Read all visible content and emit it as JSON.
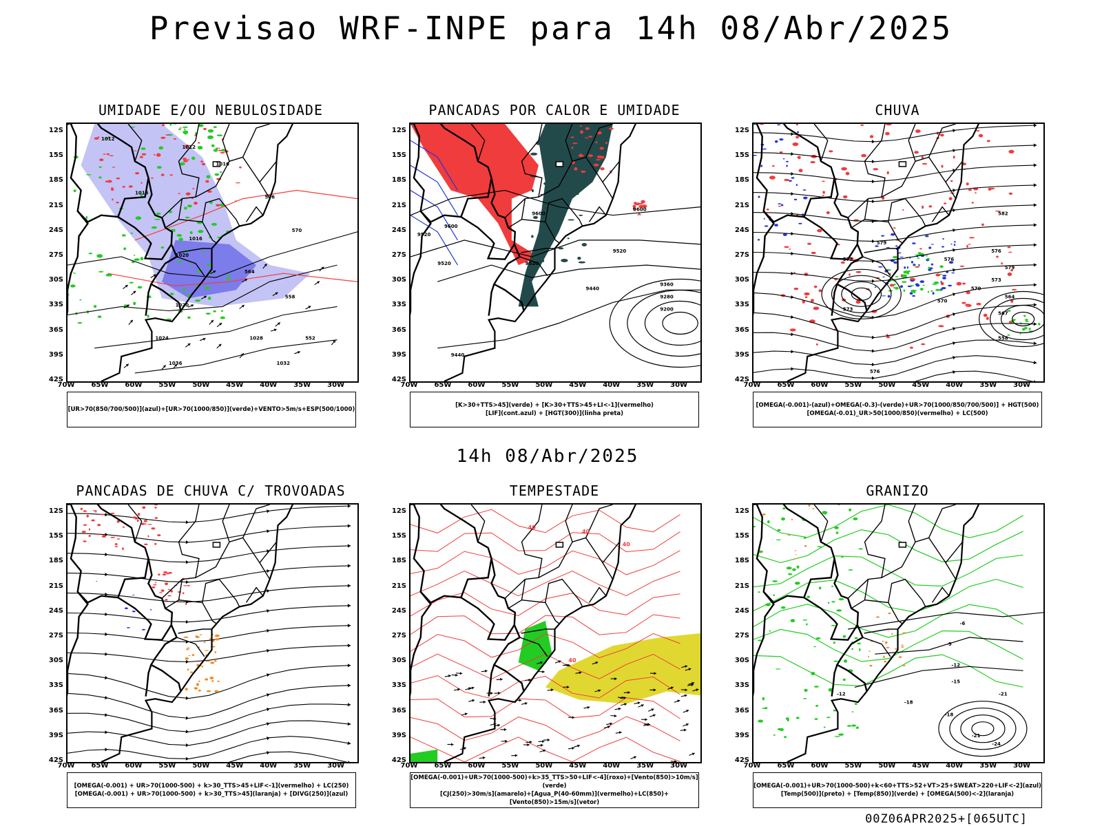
{
  "title": "Previsao WRF-INPE  para 14h 08/Abr/2025",
  "middle_label": "14h 08/Abr/2025",
  "footer": "00Z06APR2025+[065UTC]",
  "colors": {
    "red": "#f03c3c",
    "green": "#22cc22",
    "blue": "#2233dd",
    "lavender": "#b4b4f2",
    "darkteal": "#234a4a",
    "yellow": "#e0d830",
    "orange": "#f08c28"
  },
  "chart_data": [
    {
      "type": "map",
      "panel": "UMIDADE E/OU NEBULOSIDADE",
      "title": "UMIDADE E/OU NEBULOSIDADE",
      "legend_lines": [
        "[UR>70(850/700/500)](azul)+[UR>70(1000/850)](verde)+VENTO>5m/s+ESP(500/1000)"
      ],
      "lat_ticks": [
        "12S",
        "15S",
        "18S",
        "21S",
        "24S",
        "27S",
        "30S",
        "33S",
        "36S",
        "39S",
        "42S"
      ],
      "lon_ticks": [
        "70W",
        "65W",
        "60W",
        "55W",
        "50W",
        "45W",
        "40W",
        "35W",
        "30W"
      ],
      "contour_labels": [
        "1012",
        "1012",
        "1016",
        "1016",
        "1016",
        "1020",
        "1020",
        "1024",
        "1028",
        "1032",
        "1036",
        "576",
        "570",
        "564",
        "558",
        "552",
        "546"
      ]
    },
    {
      "type": "map",
      "panel": "PANCADAS POR CALOR E UMIDADE",
      "title": "PANCADAS POR CALOR E UMIDADE",
      "legend_lines": [
        "[K>30+TTS>45](verde) + [K>30+TTS>45+LI<-1](vermelho)",
        "[LIF](cont.azul) + [HGT(300)](linha preta)"
      ],
      "lat_ticks": [
        "12S",
        "15S",
        "18S",
        "21S",
        "24S",
        "27S",
        "30S",
        "33S",
        "36S",
        "39S",
        "42S"
      ],
      "lon_ticks": [
        "70W",
        "65W",
        "60W",
        "55W",
        "50W",
        "45W",
        "40W",
        "35W",
        "30W"
      ],
      "contour_labels": [
        "9600",
        "9600",
        "9600",
        "9520",
        "9520",
        "9520",
        "9520",
        "9440",
        "9440",
        "9360",
        "9280",
        "9200"
      ]
    },
    {
      "type": "map",
      "panel": "CHUVA",
      "title": "CHUVA",
      "legend_lines": [
        "[OMEGA(-0.001)-(azul)+OMEGA(-0.3)-(verde)+UR>70(1000/850/700/500)] + HGT(500)",
        "[OMEGA(-0.01)_UR>50(1000/850)(vermelho) + LC(500)"
      ],
      "lat_ticks": [
        "12S",
        "15S",
        "18S",
        "21S",
        "24S",
        "27S",
        "30S",
        "33S",
        "36S",
        "39S",
        "42S"
      ],
      "lon_ticks": [
        "70W",
        "65W",
        "60W",
        "55W",
        "50W",
        "45W",
        "40W",
        "35W",
        "30W"
      ],
      "contour_labels": [
        "582",
        "579",
        "576",
        "573",
        "570",
        "573",
        "579",
        "576",
        "573",
        "570",
        "567",
        "564",
        "558",
        "576"
      ]
    },
    {
      "type": "map",
      "panel": "PANCADAS DE CHUVA C/ TROVOADAS",
      "title": "PANCADAS DE CHUVA C/ TROVOADAS",
      "legend_lines": [
        "[OMEGA(-0.001) + UR>70(1000-500) + k>30_TTS>45+LIF<-1](vermelho) + LC(250)",
        "[OMEGA(-0.001) + UR>70(1000-500) + k>30_TTS>45](laranja) + [DIVG(250)](azul)"
      ],
      "lat_ticks": [
        "12S",
        "15S",
        "18S",
        "21S",
        "24S",
        "27S",
        "30S",
        "33S",
        "36S",
        "39S",
        "42S"
      ],
      "lon_ticks": [
        "70W",
        "65W",
        "60W",
        "55W",
        "50W",
        "45W",
        "40W",
        "35W",
        "30W"
      ],
      "contour_labels": []
    },
    {
      "type": "map",
      "panel": "TEMPESTADE",
      "title": "TEMPESTADE",
      "legend_lines": [
        "[OMEGA(-0.001)+UR>70(1000-500)+k>35_TTS>50+LIF<-4](roxo)+[Vento(850)>10m/s](verde)",
        "[CJ(250)>30m/s](amarelo)+[Agua_P(40-60mm)](vermelho)+LC(850)+[Vento(850)>15m/s](vetor)"
      ],
      "lat_ticks": [
        "12S",
        "15S",
        "18S",
        "21S",
        "24S",
        "27S",
        "30S",
        "33S",
        "36S",
        "39S",
        "42S"
      ],
      "lon_ticks": [
        "70W",
        "65W",
        "60W",
        "55W",
        "50W",
        "45W",
        "40W",
        "35W",
        "30W"
      ],
      "contour_labels": [
        "40",
        "40",
        "40",
        "40"
      ]
    },
    {
      "type": "map",
      "panel": "GRANIZO",
      "title": "GRANIZO",
      "legend_lines": [
        "[OMEGA(-0.001)+UR>70(1000-500)+k<60+TTS>52+VT>25+SWEAT>220+LIF<-2](azul)",
        "[Temp(500)](preto) + [Temp(850)](verde) + [OMEGA(500)<-2](laranja)"
      ],
      "lat_ticks": [
        "12S",
        "15S",
        "18S",
        "21S",
        "24S",
        "27S",
        "30S",
        "33S",
        "36S",
        "39S",
        "42S"
      ],
      "lon_ticks": [
        "70W",
        "65W",
        "60W",
        "55W",
        "50W",
        "45W",
        "40W",
        "35W",
        "30W"
      ],
      "contour_labels": [
        "-6",
        "-9",
        "-12",
        "-15",
        "-18",
        "-21",
        "-24",
        "-21",
        "-18",
        "-12"
      ]
    }
  ]
}
